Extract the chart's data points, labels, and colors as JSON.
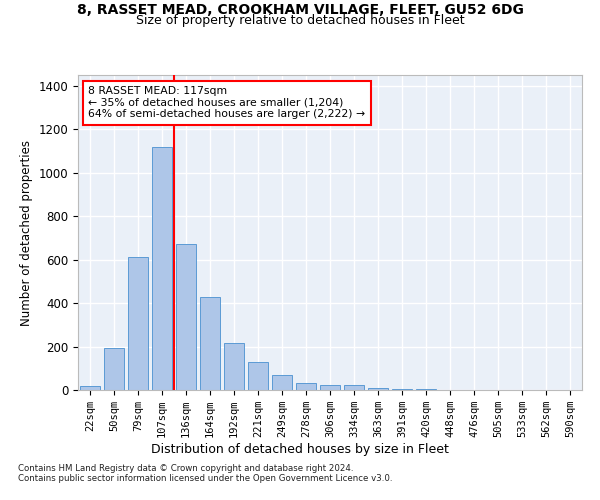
{
  "title_line1": "8, RASSET MEAD, CROOKHAM VILLAGE, FLEET, GU52 6DG",
  "title_line2": "Size of property relative to detached houses in Fleet",
  "xlabel": "Distribution of detached houses by size in Fleet",
  "ylabel": "Number of detached properties",
  "bar_color": "#aec6e8",
  "bar_edge_color": "#5b9bd5",
  "background_color": "#eaf0f8",
  "grid_color": "#ffffff",
  "categories": [
    "22sqm",
    "50sqm",
    "79sqm",
    "107sqm",
    "136sqm",
    "164sqm",
    "192sqm",
    "221sqm",
    "249sqm",
    "278sqm",
    "306sqm",
    "334sqm",
    "363sqm",
    "391sqm",
    "420sqm",
    "448sqm",
    "476sqm",
    "505sqm",
    "533sqm",
    "562sqm",
    "590sqm"
  ],
  "values": [
    20,
    195,
    610,
    1120,
    670,
    430,
    215,
    130,
    70,
    30,
    25,
    22,
    10,
    5,
    4,
    2,
    2,
    1,
    1,
    1,
    1
  ],
  "ylim": [
    0,
    1450
  ],
  "yticks": [
    0,
    200,
    400,
    600,
    800,
    1000,
    1200,
    1400
  ],
  "property_label": "8 RASSET MEAD: 117sqm",
  "pct_smaller": "35% of detached houses are smaller (1,204)",
  "pct_larger": "64% of semi-detached houses are larger (2,222)",
  "red_line_bar_index": 3,
  "footnote1": "Contains HM Land Registry data © Crown copyright and database right 2024.",
  "footnote2": "Contains public sector information licensed under the Open Government Licence v3.0."
}
